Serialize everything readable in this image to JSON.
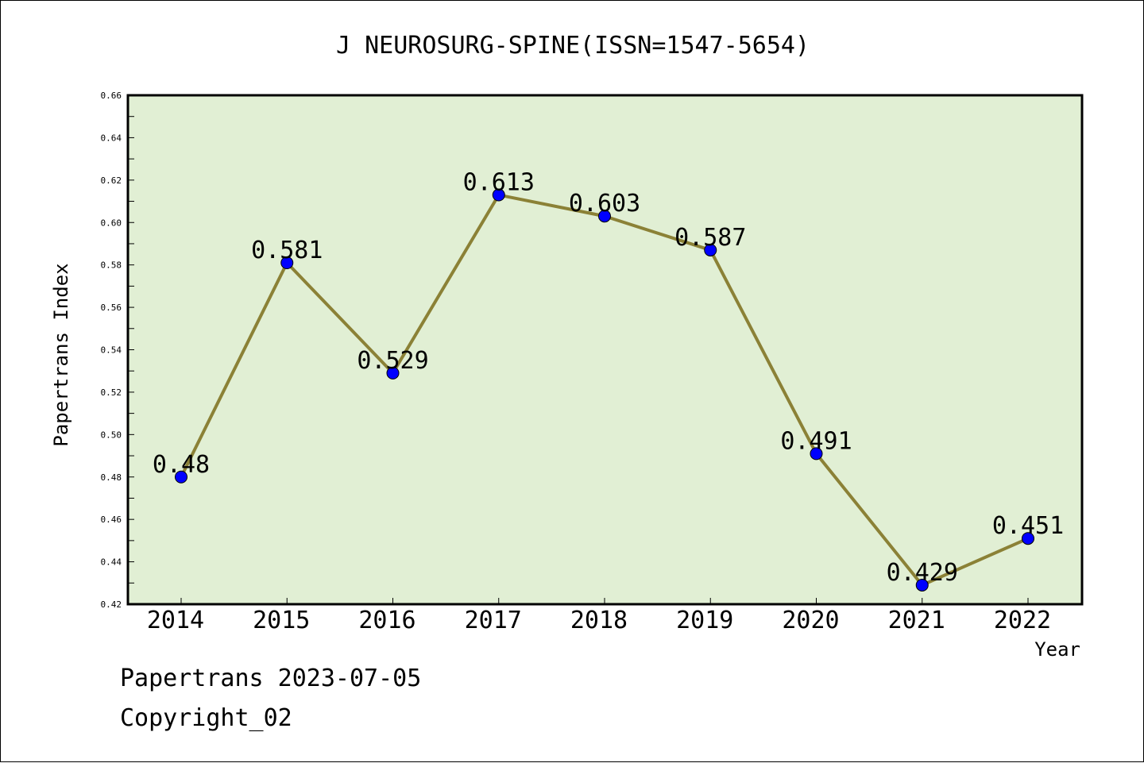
{
  "chart_data": {
    "type": "line",
    "title": "J NEUROSURG-SPINE(ISSN=1547-5654)",
    "xlabel": "Year",
    "ylabel": "Papertrans Index",
    "categories": [
      "2014",
      "2015",
      "2016",
      "2017",
      "2018",
      "2019",
      "2020",
      "2021",
      "2022"
    ],
    "series": [
      {
        "values": [
          0.48,
          0.581,
          0.529,
          0.613,
          0.603,
          0.587,
          0.491,
          0.429,
          0.451
        ],
        "labels": [
          "0.48",
          "0.581",
          "0.529",
          "0.613",
          "0.603",
          "0.587",
          "0.491",
          "0.429",
          "0.451"
        ]
      }
    ],
    "ylim": [
      0.42,
      0.66
    ],
    "yticks": [
      "0.42",
      "0.44",
      "0.46",
      "0.48",
      "0.50",
      "0.52",
      "0.54",
      "0.56",
      "0.58",
      "0.60",
      "0.62",
      "0.64",
      "0.66"
    ],
    "grid": false,
    "legend": "none",
    "colors": {
      "plot_background": "#e1efd4",
      "line": "#8b8136",
      "marker": "#0000ff"
    }
  },
  "footer": {
    "date_line": "Papertrans 2023-07-05",
    "copyright": "Copyright_02"
  }
}
